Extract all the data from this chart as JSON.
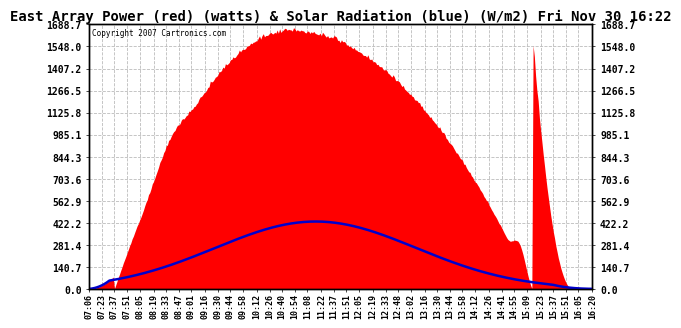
{
  "title": "East Array Power (red) (watts) & Solar Radiation (blue) (W/m2) Fri Nov 30 16:22",
  "copyright": "Copyright 2007 Cartronics.com",
  "yticks": [
    0.0,
    140.7,
    281.4,
    422.2,
    562.9,
    703.6,
    844.3,
    985.1,
    1125.8,
    1266.5,
    1407.2,
    1548.0,
    1688.7
  ],
  "ymax": 1688.7,
  "ymin": 0.0,
  "bg_color": "#ffffff",
  "plot_bg_color": "#ffffff",
  "grid_color": "#bbbbbb",
  "fill_color": "#ff0000",
  "line_color": "#0000cc",
  "title_fontsize": 10,
  "solar_peak": 430,
  "power_peak": 1640,
  "x_labels": [
    "07:06",
    "07:23",
    "07:37",
    "07:51",
    "08:05",
    "08:19",
    "08:33",
    "08:47",
    "09:01",
    "09:16",
    "09:30",
    "09:44",
    "09:58",
    "10:12",
    "10:26",
    "10:40",
    "10:54",
    "11:08",
    "11:22",
    "11:37",
    "11:51",
    "12:05",
    "12:19",
    "12:33",
    "12:48",
    "13:02",
    "13:16",
    "13:30",
    "13:44",
    "13:58",
    "14:12",
    "14:26",
    "14:41",
    "14:55",
    "15:09",
    "15:23",
    "15:37",
    "15:51",
    "16:05",
    "16:20"
  ]
}
